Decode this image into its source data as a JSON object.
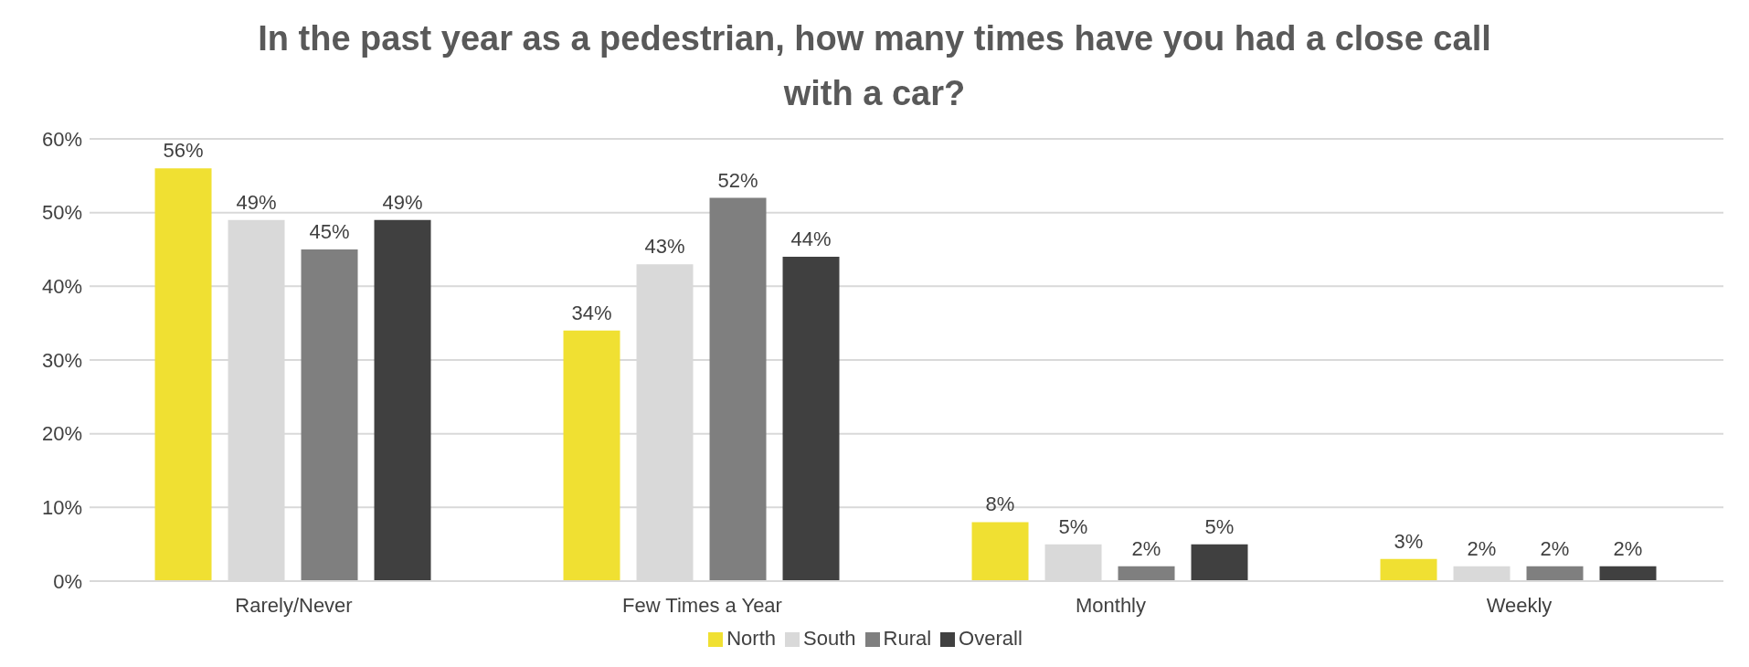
{
  "chart_data": {
    "type": "bar",
    "title": "In the past year as a pedestrian, how many times have you had a close call with a car?",
    "categories": [
      "Rarely/Never",
      "Few Times a Year",
      "Monthly",
      "Weekly"
    ],
    "series": [
      {
        "name": "North",
        "color": "#f0e032",
        "values": [
          56,
          34,
          8,
          3
        ],
        "value_labels": [
          "56%",
          "34%",
          "8%",
          "3%"
        ]
      },
      {
        "name": "South",
        "color": "#d9d9d9",
        "values": [
          49,
          43,
          5,
          2
        ],
        "value_labels": [
          "49%",
          "43%",
          "5%",
          "2%"
        ]
      },
      {
        "name": "Rural",
        "color": "#7f7f7f",
        "values": [
          45,
          52,
          2,
          2
        ],
        "value_labels": [
          "45%",
          "52%",
          "2%",
          "2%"
        ]
      },
      {
        "name": "Overall",
        "color": "#404040",
        "values": [
          49,
          44,
          5,
          2
        ],
        "value_labels": [
          "49%",
          "44%",
          "5%",
          "2%"
        ]
      }
    ],
    "ylim": [
      0,
      60
    ],
    "yticks": [
      {
        "value": 0,
        "label": "0%"
      },
      {
        "value": 10,
        "label": "10%"
      },
      {
        "value": 20,
        "label": "20%"
      },
      {
        "value": 30,
        "label": "30%"
      },
      {
        "value": 40,
        "label": "40%"
      },
      {
        "value": 50,
        "label": "50%"
      },
      {
        "value": 60,
        "label": "60%"
      }
    ],
    "grid": "y",
    "legend": "bottom"
  }
}
